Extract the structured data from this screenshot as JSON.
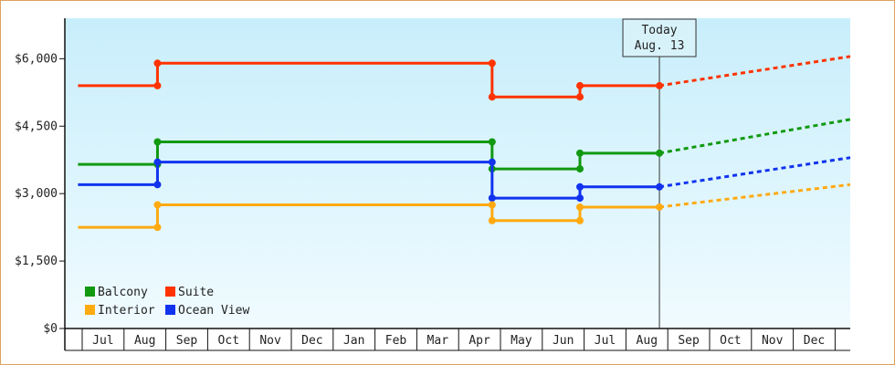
{
  "chart_data": {
    "type": "line",
    "title": "",
    "xlabel": "",
    "ylabel": "",
    "ylim": [
      0,
      6900
    ],
    "y_ticks": [
      {
        "value": 0,
        "label": "$0"
      },
      {
        "value": 1500,
        "label": "$1,500"
      },
      {
        "value": 3000,
        "label": "$3,000"
      },
      {
        "value": 4500,
        "label": "$4,500"
      },
      {
        "value": 6000,
        "label": "$6,000"
      }
    ],
    "months": [
      "Jul",
      "Aug",
      "Sep",
      "Oct",
      "Nov",
      "Dec",
      "Jan",
      "Feb",
      "Mar",
      "Apr",
      "May",
      "Jun",
      "Jul",
      "Aug",
      "Sep",
      "Oct",
      "Nov",
      "Dec"
    ],
    "today": {
      "line1": "Today",
      "line2": "Aug. 13",
      "x": 13.3
    },
    "grid": false,
    "legend_position": "bottom-left",
    "series": [
      {
        "name": "Suite",
        "color": "#ff3300",
        "actual": [
          [
            -0.6,
            5400
          ],
          [
            1.3,
            5400
          ],
          [
            1.3,
            5900
          ],
          [
            9.3,
            5900
          ],
          [
            9.3,
            5150
          ],
          [
            11.4,
            5150
          ],
          [
            11.4,
            5400
          ],
          [
            13.3,
            5400
          ]
        ],
        "projected": [
          [
            13.3,
            5400
          ],
          [
            18.4,
            6050
          ]
        ]
      },
      {
        "name": "Balcony",
        "color": "#119911",
        "actual": [
          [
            -0.6,
            3650
          ],
          [
            1.3,
            3650
          ],
          [
            1.3,
            4150
          ],
          [
            9.3,
            4150
          ],
          [
            9.3,
            3550
          ],
          [
            11.4,
            3550
          ],
          [
            11.4,
            3900
          ],
          [
            13.3,
            3900
          ]
        ],
        "projected": [
          [
            13.3,
            3900
          ],
          [
            18.4,
            4650
          ]
        ]
      },
      {
        "name": "Ocean View",
        "color": "#1133ee",
        "actual": [
          [
            -0.6,
            3200
          ],
          [
            1.3,
            3200
          ],
          [
            1.3,
            3700
          ],
          [
            9.3,
            3700
          ],
          [
            9.3,
            2900
          ],
          [
            11.4,
            2900
          ],
          [
            11.4,
            3150
          ],
          [
            13.3,
            3150
          ]
        ],
        "projected": [
          [
            13.3,
            3150
          ],
          [
            18.4,
            3800
          ]
        ]
      },
      {
        "name": "Interior",
        "color": "#ffaa11",
        "actual": [
          [
            -0.6,
            2250
          ],
          [
            1.3,
            2250
          ],
          [
            1.3,
            2750
          ],
          [
            9.3,
            2750
          ],
          [
            9.3,
            2400
          ],
          [
            11.4,
            2400
          ],
          [
            11.4,
            2700
          ],
          [
            13.3,
            2700
          ]
        ],
        "projected": [
          [
            13.3,
            2700
          ],
          [
            18.4,
            3200
          ]
        ]
      }
    ],
    "legend": [
      {
        "name": "Balcony",
        "color": "#119911"
      },
      {
        "name": "Suite",
        "color": "#ff3300"
      },
      {
        "name": "Interior",
        "color": "#ffaa11"
      },
      {
        "name": "Ocean View",
        "color": "#1133ee"
      }
    ]
  }
}
